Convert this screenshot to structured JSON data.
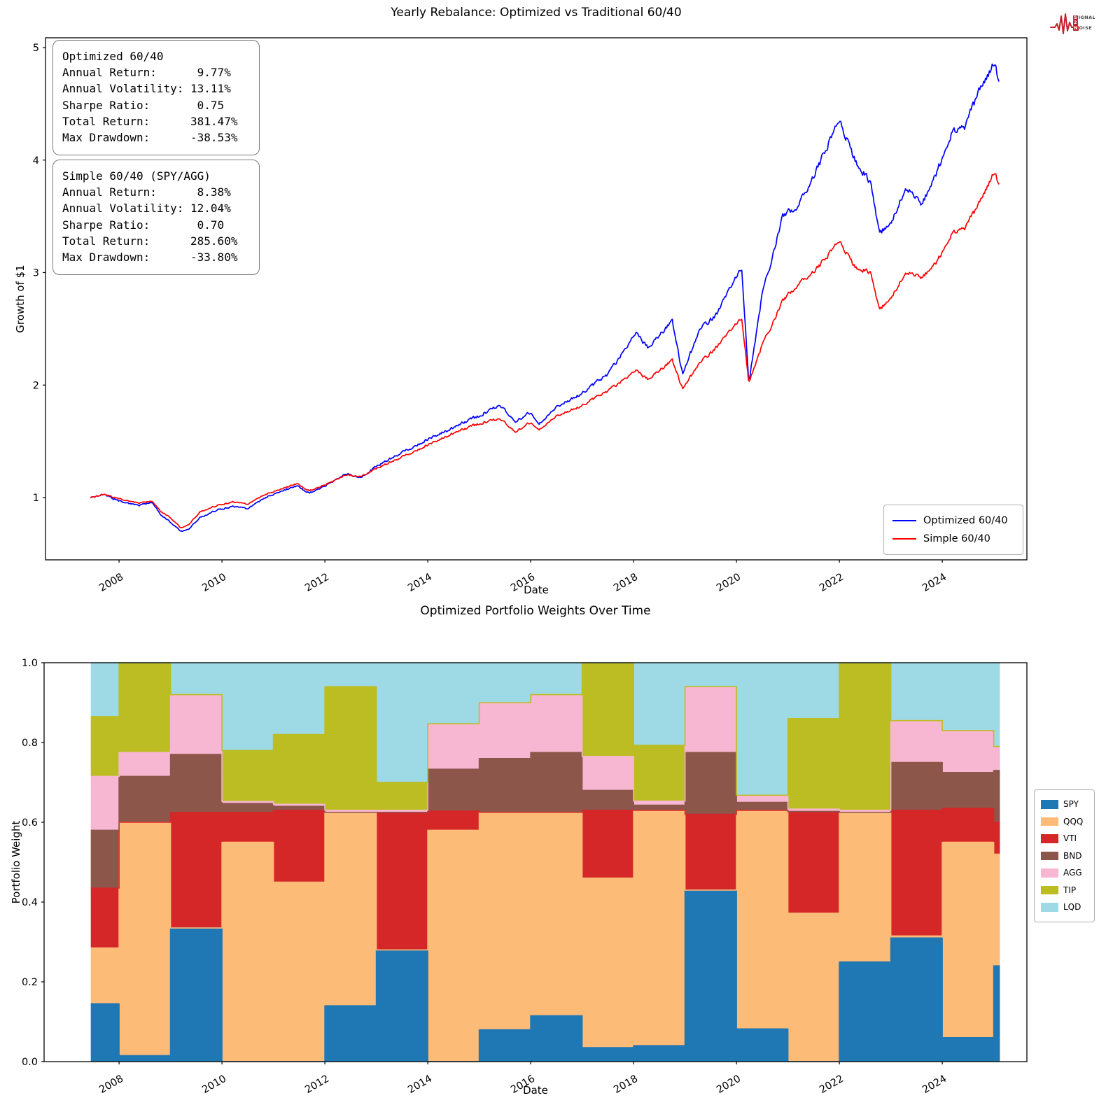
{
  "logo": {
    "word1_boxed": "S",
    "word1_rest": "IGNAL",
    "word2_boxed": "2",
    "word3_boxed": "N",
    "word3_rest": "OISE",
    "color": "#c0222c"
  },
  "top_chart": {
    "title": "Yearly Rebalance: Optimized vs Traditional 60/40",
    "xlabel": "Date",
    "ylabel": "Growth of $1",
    "stats_boxes": [
      {
        "lines": [
          "Optimized 60/40",
          "Annual Return:      9.77%",
          "Annual Volatility: 13.11%",
          "Sharpe Ratio:       0.75",
          "Total Return:      381.47%",
          "Max Drawdown:      -38.53%"
        ]
      },
      {
        "lines": [
          "Simple 60/40 (SPY/AGG)",
          "Annual Return:      8.38%",
          "Annual Volatility: 12.04%",
          "Sharpe Ratio:       0.70",
          "Total Return:      285.60%",
          "Max Drawdown:      -33.80%"
        ]
      }
    ],
    "legend": [
      {
        "label": "Optimized 60/40",
        "color": "#0000ff"
      },
      {
        "label": "Simple 60/40",
        "color": "#ff0000"
      }
    ]
  },
  "bottom_chart": {
    "title": "Optimized Portfolio Weights Over Time",
    "xlabel": "Date",
    "ylabel": "Portfolio Weight"
  },
  "chart_data": [
    {
      "type": "line",
      "title": "Yearly Rebalance: Optimized vs Traditional 60/40",
      "xlabel": "Date",
      "ylabel": "Growth of $1",
      "xlim": [
        2006.57,
        2025.66
      ],
      "ylim": [
        0.446,
        5.087
      ],
      "xticks": [
        2008,
        2010,
        2012,
        2014,
        2016,
        2018,
        2020,
        2022,
        2024
      ],
      "yticks": [
        1,
        2,
        3,
        4,
        5
      ],
      "grid": false,
      "legend_position": "lower right",
      "series": [
        {
          "name": "Optimized 60/40",
          "color": "#0000ff",
          "points": [
            [
              2007.45,
              1.0
            ],
            [
              2007.7,
              1.03
            ],
            [
              2008.0,
              0.97
            ],
            [
              2008.4,
              0.93
            ],
            [
              2008.65,
              0.96
            ],
            [
              2008.8,
              0.85
            ],
            [
              2009.0,
              0.78
            ],
            [
              2009.2,
              0.7
            ],
            [
              2009.35,
              0.72
            ],
            [
              2009.6,
              0.83
            ],
            [
              2009.9,
              0.89
            ],
            [
              2010.2,
              0.92
            ],
            [
              2010.5,
              0.9
            ],
            [
              2010.8,
              0.99
            ],
            [
              2011.1,
              1.05
            ],
            [
              2011.45,
              1.1
            ],
            [
              2011.7,
              1.04
            ],
            [
              2012.0,
              1.1
            ],
            [
              2012.4,
              1.21
            ],
            [
              2012.7,
              1.18
            ],
            [
              2013.0,
              1.28
            ],
            [
              2013.5,
              1.4
            ],
            [
              2014.0,
              1.52
            ],
            [
              2014.5,
              1.62
            ],
            [
              2015.0,
              1.73
            ],
            [
              2015.4,
              1.82
            ],
            [
              2015.7,
              1.67
            ],
            [
              2016.0,
              1.76
            ],
            [
              2016.15,
              1.65
            ],
            [
              2016.5,
              1.8
            ],
            [
              2017.0,
              1.93
            ],
            [
              2017.5,
              2.1
            ],
            [
              2018.05,
              2.45
            ],
            [
              2018.3,
              2.33
            ],
            [
              2018.75,
              2.57
            ],
            [
              2018.95,
              2.1
            ],
            [
              2019.3,
              2.5
            ],
            [
              2019.6,
              2.62
            ],
            [
              2020.1,
              3.05
            ],
            [
              2020.24,
              2.02
            ],
            [
              2020.5,
              2.8
            ],
            [
              2020.9,
              3.5
            ],
            [
              2021.2,
              3.6
            ],
            [
              2021.6,
              3.95
            ],
            [
              2022.0,
              4.37
            ],
            [
              2022.3,
              4.0
            ],
            [
              2022.6,
              3.8
            ],
            [
              2022.78,
              3.35
            ],
            [
              2023.0,
              3.45
            ],
            [
              2023.3,
              3.75
            ],
            [
              2023.6,
              3.6
            ],
            [
              2023.9,
              3.9
            ],
            [
              2024.2,
              4.25
            ],
            [
              2024.45,
              4.3
            ],
            [
              2024.7,
              4.6
            ],
            [
              2025.0,
              4.85
            ],
            [
              2025.1,
              4.72
            ]
          ]
        },
        {
          "name": "Simple 60/40",
          "color": "#ff0000",
          "points": [
            [
              2007.45,
              1.0
            ],
            [
              2007.7,
              1.03
            ],
            [
              2008.0,
              0.99
            ],
            [
              2008.4,
              0.95
            ],
            [
              2008.65,
              0.97
            ],
            [
              2008.8,
              0.88
            ],
            [
              2009.0,
              0.82
            ],
            [
              2009.2,
              0.73
            ],
            [
              2009.35,
              0.76
            ],
            [
              2009.6,
              0.88
            ],
            [
              2009.9,
              0.93
            ],
            [
              2010.2,
              0.96
            ],
            [
              2010.5,
              0.94
            ],
            [
              2010.8,
              1.02
            ],
            [
              2011.1,
              1.07
            ],
            [
              2011.45,
              1.12
            ],
            [
              2011.7,
              1.06
            ],
            [
              2012.0,
              1.11
            ],
            [
              2012.4,
              1.2
            ],
            [
              2012.7,
              1.19
            ],
            [
              2013.0,
              1.26
            ],
            [
              2013.5,
              1.36
            ],
            [
              2014.0,
              1.47
            ],
            [
              2014.5,
              1.57
            ],
            [
              2015.0,
              1.66
            ],
            [
              2015.4,
              1.7
            ],
            [
              2015.7,
              1.58
            ],
            [
              2016.0,
              1.67
            ],
            [
              2016.15,
              1.6
            ],
            [
              2016.5,
              1.72
            ],
            [
              2017.0,
              1.82
            ],
            [
              2017.5,
              1.95
            ],
            [
              2018.05,
              2.12
            ],
            [
              2018.3,
              2.05
            ],
            [
              2018.75,
              2.22
            ],
            [
              2018.95,
              1.97
            ],
            [
              2019.3,
              2.2
            ],
            [
              2019.6,
              2.33
            ],
            [
              2020.1,
              2.6
            ],
            [
              2020.24,
              2.02
            ],
            [
              2020.5,
              2.35
            ],
            [
              2020.9,
              2.75
            ],
            [
              2021.2,
              2.9
            ],
            [
              2021.6,
              3.05
            ],
            [
              2022.0,
              3.29
            ],
            [
              2022.3,
              3.05
            ],
            [
              2022.6,
              3.0
            ],
            [
              2022.78,
              2.67
            ],
            [
              2023.0,
              2.78
            ],
            [
              2023.3,
              3.0
            ],
            [
              2023.6,
              2.95
            ],
            [
              2023.9,
              3.1
            ],
            [
              2024.2,
              3.35
            ],
            [
              2024.45,
              3.4
            ],
            [
              2024.7,
              3.6
            ],
            [
              2025.0,
              3.88
            ],
            [
              2025.1,
              3.8
            ]
          ]
        }
      ]
    },
    {
      "type": "area",
      "title": "Optimized Portfolio Weights Over Time",
      "xlabel": "Date",
      "ylabel": "Portfolio Weight",
      "xlim": [
        2006.57,
        2025.66
      ],
      "ylim": [
        0.0,
        1.0
      ],
      "xticks": [
        2008,
        2010,
        2012,
        2014,
        2016,
        2018,
        2020,
        2022,
        2024
      ],
      "yticks": [
        0.0,
        0.2,
        0.4,
        0.6,
        0.8,
        1.0
      ],
      "legend_position": "right outside",
      "bounds": [
        2007.45,
        2008,
        2009,
        2010,
        2011,
        2012,
        2013,
        2014,
        2015,
        2016,
        2017,
        2018,
        2019,
        2020,
        2021,
        2022,
        2023,
        2024,
        2025,
        2025.12
      ],
      "series": [
        {
          "name": "SPY",
          "color": "#1f77b4",
          "values": [
            0.145,
            0.015,
            0.335,
            0,
            0,
            0.14,
            0.28,
            0,
            0.08,
            0.115,
            0.035,
            0.04,
            0.43,
            0.082,
            0,
            0.25,
            0.31,
            0.06,
            0.24
          ]
        },
        {
          "name": "QQQ",
          "color": "#fdbb78",
          "values": [
            0.14,
            0.585,
            0,
            0.55,
            0.45,
            0.485,
            0,
            0.58,
            0.545,
            0.51,
            0.425,
            0.59,
            0,
            0.548,
            0.372,
            0.375,
            0.005,
            0.49,
            0.28
          ]
        },
        {
          "name": "VTI",
          "color": "#d62728",
          "values": [
            0.15,
            0,
            0.29,
            0.075,
            0.18,
            0,
            0.345,
            0.048,
            0,
            0,
            0.17,
            0,
            0.19,
            0,
            0.255,
            0,
            0.315,
            0.085,
            0.08
          ]
        },
        {
          "name": "BND",
          "color": "#8c564b",
          "values": [
            0.145,
            0.115,
            0.145,
            0.022,
            0.01,
            0,
            0,
            0.105,
            0.135,
            0.15,
            0.05,
            0.013,
            0.155,
            0.02,
            0,
            0,
            0.12,
            0.09,
            0.13
          ]
        },
        {
          "name": "AGG",
          "color": "#f7b6d2",
          "values": [
            0.135,
            0.06,
            0.15,
            0.005,
            0.005,
            0.005,
            0.005,
            0.114,
            0.14,
            0.145,
            0.085,
            0.01,
            0.165,
            0.018,
            0.006,
            0.005,
            0.105,
            0.105,
            0.06
          ]
        },
        {
          "name": "TIP",
          "color": "#bcbd22",
          "values": [
            0.15,
            0.225,
            0,
            0.128,
            0.175,
            0.31,
            0.07,
            0,
            0,
            0,
            0.235,
            0.14,
            0,
            0,
            0.227,
            0.37,
            0,
            0,
            0
          ]
        },
        {
          "name": "LQD",
          "color": "#9edae5",
          "values": [
            0.135,
            0,
            0.08,
            0.22,
            0.18,
            0.06,
            0.3,
            0.153,
            0.1,
            0.08,
            0,
            0.207,
            0.06,
            0.332,
            0.14,
            0,
            0.145,
            0.17,
            0.21
          ]
        }
      ]
    }
  ]
}
